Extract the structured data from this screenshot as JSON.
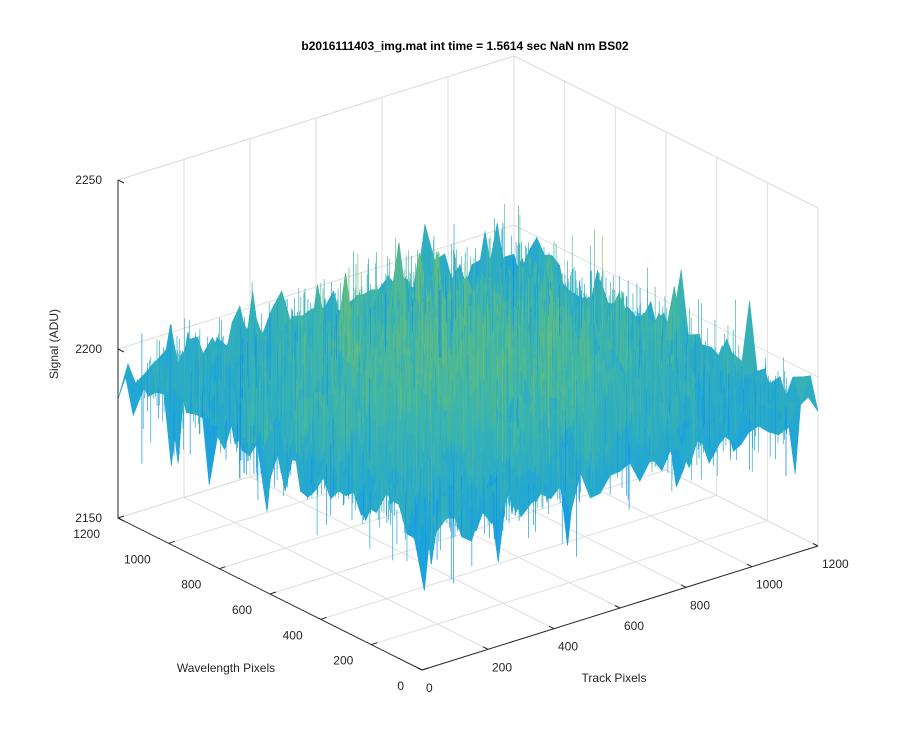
{
  "chart_data": {
    "type": "surface",
    "title": "b2016111403_img.mat int time = 1.5614 sec  NaN nm BS02",
    "xlabel": "Track Pixels",
    "ylabel": "Wavelength Pixels",
    "zlabel": "Signal (ADU)",
    "xlim": [
      0,
      1200
    ],
    "ylim": [
      0,
      1200
    ],
    "zlim": [
      2150,
      2250
    ],
    "x_ticks": [
      "0",
      "200",
      "400",
      "600",
      "800",
      "1000",
      "1200"
    ],
    "y_ticks": [
      "0",
      "200",
      "400",
      "600",
      "800",
      "1000",
      "1200"
    ],
    "z_ticks": [
      "2150",
      "2200",
      "2250"
    ],
    "surface": {
      "description_values": "noisy dark-frame signal; mean level about 2200 ADU at the centre, falling to about 2190 ADU at the edges, noise spikes from roughly 2168 to 2242 ADU",
      "center_level": 2204,
      "edge_level": 2191,
      "noise_min": 2168,
      "noise_max": 2242,
      "colormap": [
        "#0072ff",
        "#1fa5d9",
        "#3fb6a8",
        "#7fc05e",
        "#e0c23a"
      ]
    },
    "grid": true,
    "view": "3-D perspective, azimuth about -37.5, elevation about 30"
  }
}
